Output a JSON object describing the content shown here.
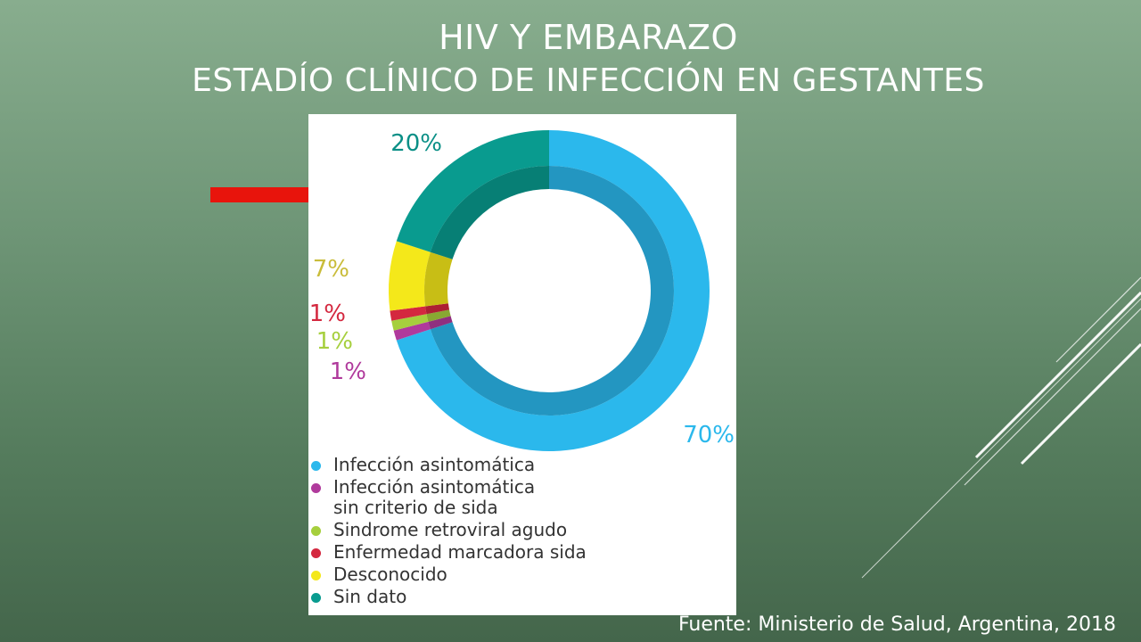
{
  "slide": {
    "title_line1": "HIV Y EMBARAZO",
    "title_line2": "ESTADÍO CLÍNICO DE INFECCIÓN EN GESTANTES",
    "source": "Fuente: Ministerio de Salud, Argentina, 2018"
  },
  "colors": {
    "accent_arrow": "#e8140c",
    "background": "#6f9677"
  },
  "chart_data": {
    "type": "pie",
    "donut": true,
    "legend_position": "bottom",
    "slices": [
      {
        "label": "Infección asintomática",
        "value": 70,
        "pct_label": "70%",
        "color": "#2bb8ec",
        "label_color": "#2bb8ec"
      },
      {
        "label": "Infección asintomática sin  criterio de sida",
        "value": 1,
        "pct_label": "1%",
        "color": "#b03a9c",
        "label_color": "#b03a9c"
      },
      {
        "label": "Sindrome retroviral agudo",
        "value": 1,
        "pct_label": "1%",
        "color": "#a6cf3d",
        "label_color": "#a6cf3d"
      },
      {
        "label": "Enfermedad marcadora sida",
        "value": 1,
        "pct_label": "1%",
        "color": "#d4283f",
        "label_color": "#d4283f"
      },
      {
        "label": "Desconocido",
        "value": 7,
        "pct_label": "7%",
        "color": "#f4e81a",
        "label_color": "#c9bc3a"
      },
      {
        "label": "Sin dato",
        "value": 20,
        "pct_label": "20%",
        "color": "#099b8f",
        "label_color": "#0a8f86"
      }
    ]
  }
}
